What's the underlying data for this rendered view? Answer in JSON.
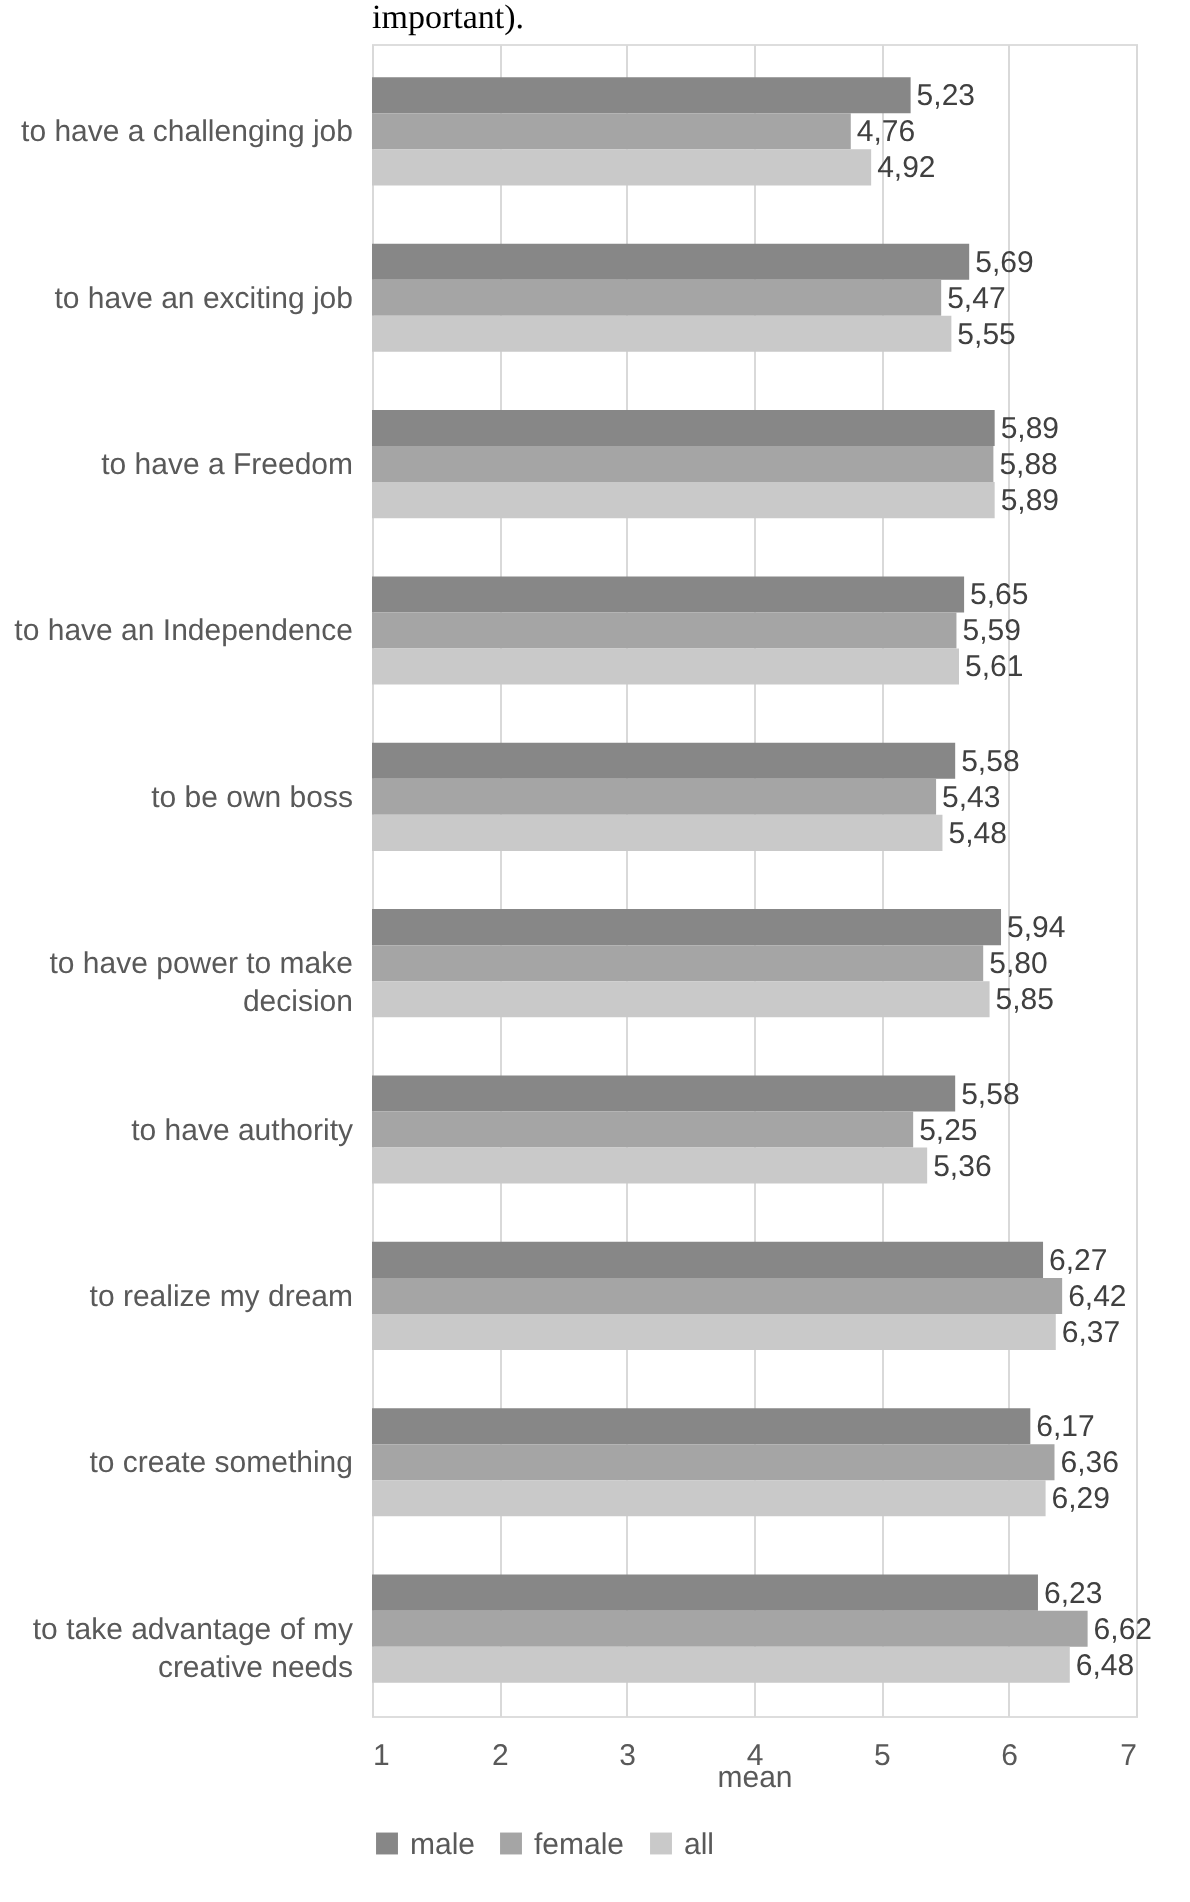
{
  "chart_data": {
    "type": "bar",
    "orientation": "horizontal",
    "xlabel": "mean",
    "annotations": [
      "important)."
    ],
    "categories": [
      "to have  a challenging job",
      "to have an exciting job",
      "to have a Freedom",
      "to have an Independence",
      "to be own boss",
      "to  have power to make decision",
      "to have authority",
      "to realize my dream",
      "to create something",
      "to take advantage of my creative needs"
    ],
    "series": [
      {
        "name": "male",
        "color": "#878787",
        "values": [
          5.23,
          5.69,
          5.89,
          5.65,
          5.58,
          5.94,
          5.58,
          6.27,
          6.17,
          6.23
        ],
        "value_labels": [
          "5,23",
          "5,69",
          "5,89",
          "5,65",
          "5,58",
          "5,94",
          "5,58",
          "6,27",
          "6,17",
          "6,23"
        ]
      },
      {
        "name": "female",
        "color": "#a5a5a5",
        "values": [
          4.76,
          5.47,
          5.88,
          5.59,
          5.43,
          5.8,
          5.25,
          6.42,
          6.36,
          6.62
        ],
        "value_labels": [
          "4,76",
          "5,47",
          "5,88",
          "5,59",
          "5,43",
          "5,80",
          "5,25",
          "6,42",
          "6,36",
          "6,62"
        ]
      },
      {
        "name": "all",
        "color": "#c9c9c9",
        "values": [
          4.92,
          5.55,
          5.89,
          5.61,
          5.48,
          5.85,
          5.36,
          6.37,
          6.29,
          6.48
        ],
        "value_labels": [
          "4,92",
          "5,55",
          "5,89",
          "5,61",
          "5,48",
          "5,85",
          "5,36",
          "6,37",
          "6,29",
          "6,48"
        ]
      }
    ],
    "xlim": [
      1,
      7
    ],
    "xticks": [
      1,
      2,
      3,
      4,
      5,
      6,
      7
    ],
    "grid": "x",
    "legend": "bottom"
  }
}
